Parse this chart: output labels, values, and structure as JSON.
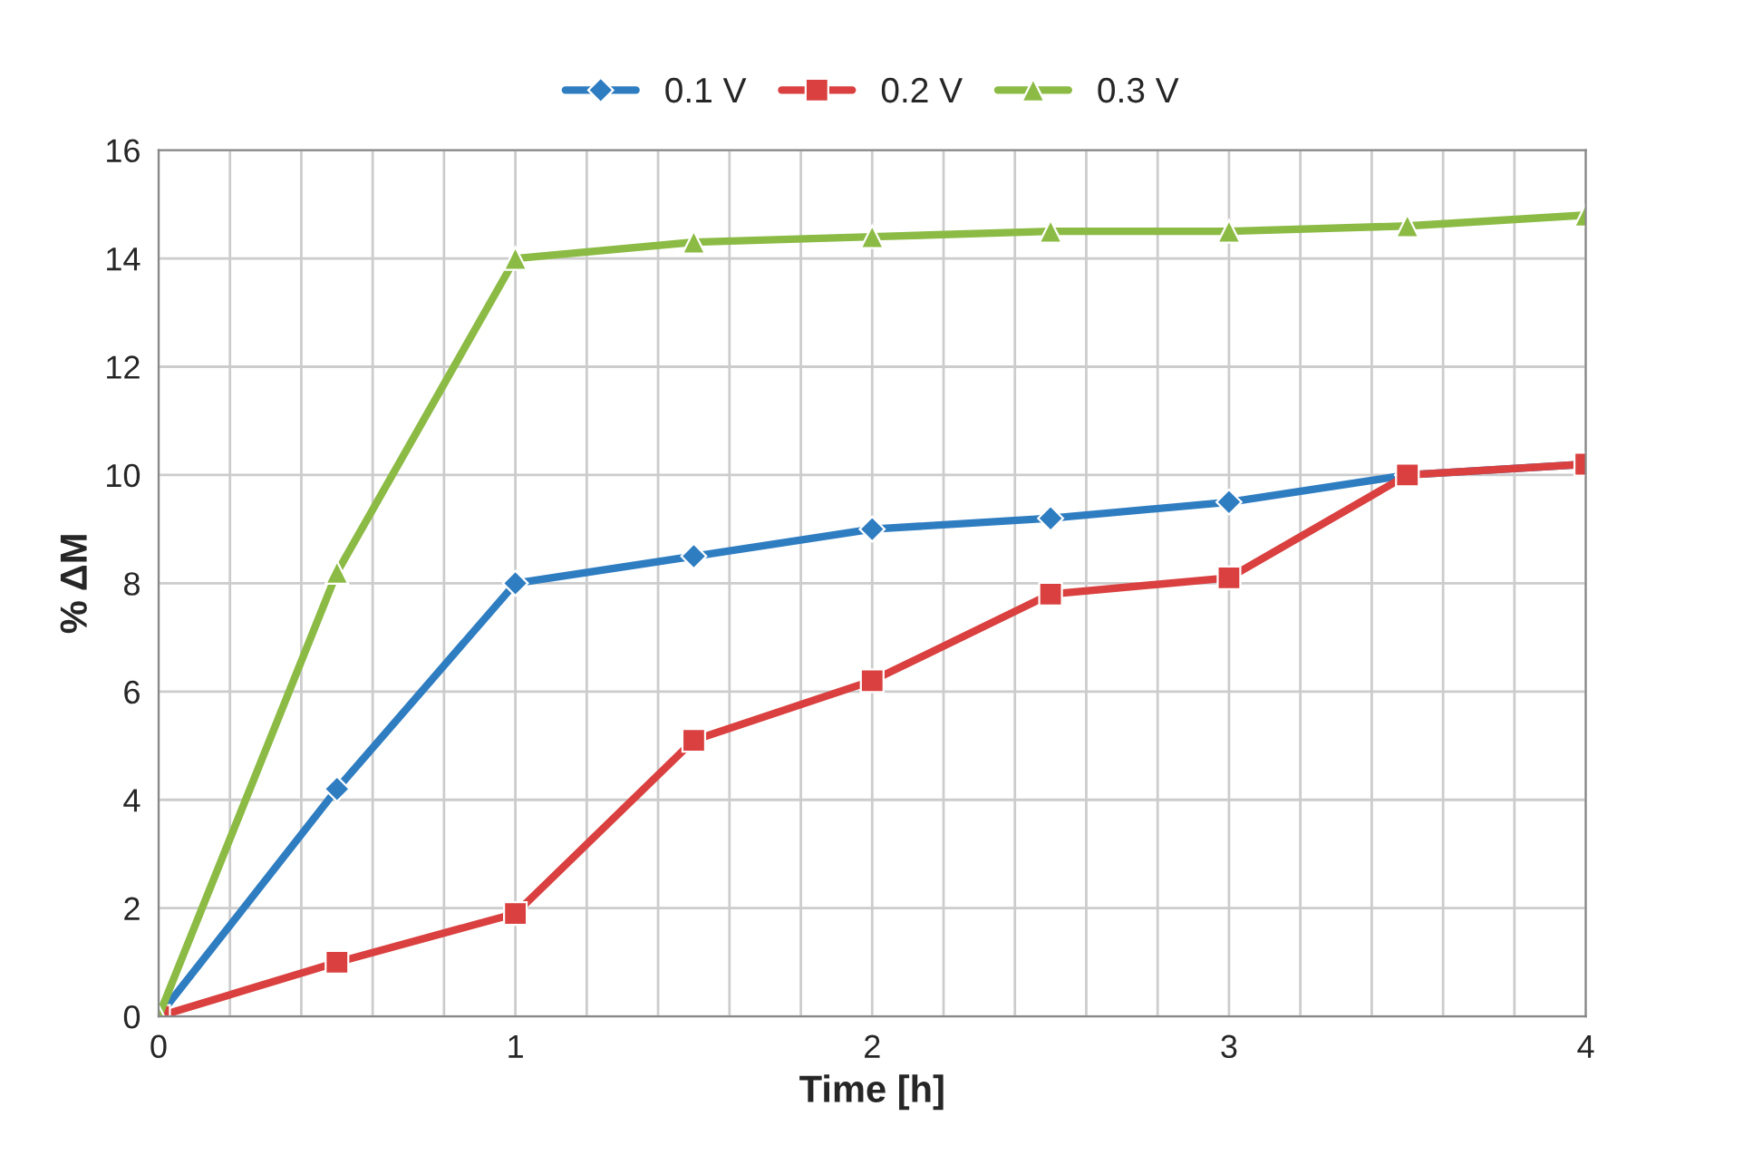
{
  "chart_data": {
    "type": "line",
    "xlabel": "Time [h]",
    "ylabel": "% ΔM",
    "x": [
      0,
      0.5,
      1,
      1.5,
      2,
      2.5,
      3,
      3.5,
      4
    ],
    "series": [
      {
        "name": "0.1 V",
        "color": "#2f7dc1",
        "marker": "diamond",
        "values": [
          0,
          4.2,
          8.0,
          8.5,
          9.0,
          9.2,
          9.5,
          10.0,
          10.2
        ]
      },
      {
        "name": "0.2 V",
        "color": "#d9403f",
        "marker": "square",
        "values": [
          0,
          1.0,
          1.9,
          5.1,
          6.2,
          7.8,
          8.1,
          10.0,
          10.2
        ]
      },
      {
        "name": "0.3 V",
        "color": "#8cbb45",
        "marker": "triangle",
        "values": [
          0,
          8.2,
          14.0,
          14.3,
          14.4,
          14.5,
          14.5,
          14.6,
          14.8
        ]
      }
    ],
    "xlim": [
      0,
      4
    ],
    "ylim": [
      0,
      16
    ],
    "xticks": [
      0,
      {
        "value": 0.2,
        "label": null
      },
      {
        "value": 0.4,
        "label": null
      },
      {
        "value": 0.6,
        "label": null
      },
      {
        "value": 0.8,
        "label": null
      },
      1,
      {
        "value": 1.2,
        "label": null
      },
      {
        "value": 1.4,
        "label": null
      },
      {
        "value": 1.6,
        "label": null
      },
      {
        "value": 1.8,
        "label": null
      },
      2,
      {
        "value": 2.2,
        "label": null
      },
      {
        "value": 2.4,
        "label": null
      },
      {
        "value": 2.6,
        "label": null
      },
      {
        "value": 2.8,
        "label": null
      },
      3,
      {
        "value": 3.2,
        "label": null
      },
      {
        "value": 3.4,
        "label": null
      },
      {
        "value": 3.6,
        "label": null
      },
      {
        "value": 3.8,
        "label": null
      },
      4
    ],
    "yticks": [
      0,
      2,
      4,
      6,
      8,
      10,
      12,
      14,
      16
    ],
    "grid": true,
    "legend": "top",
    "line_style": "solid"
  }
}
